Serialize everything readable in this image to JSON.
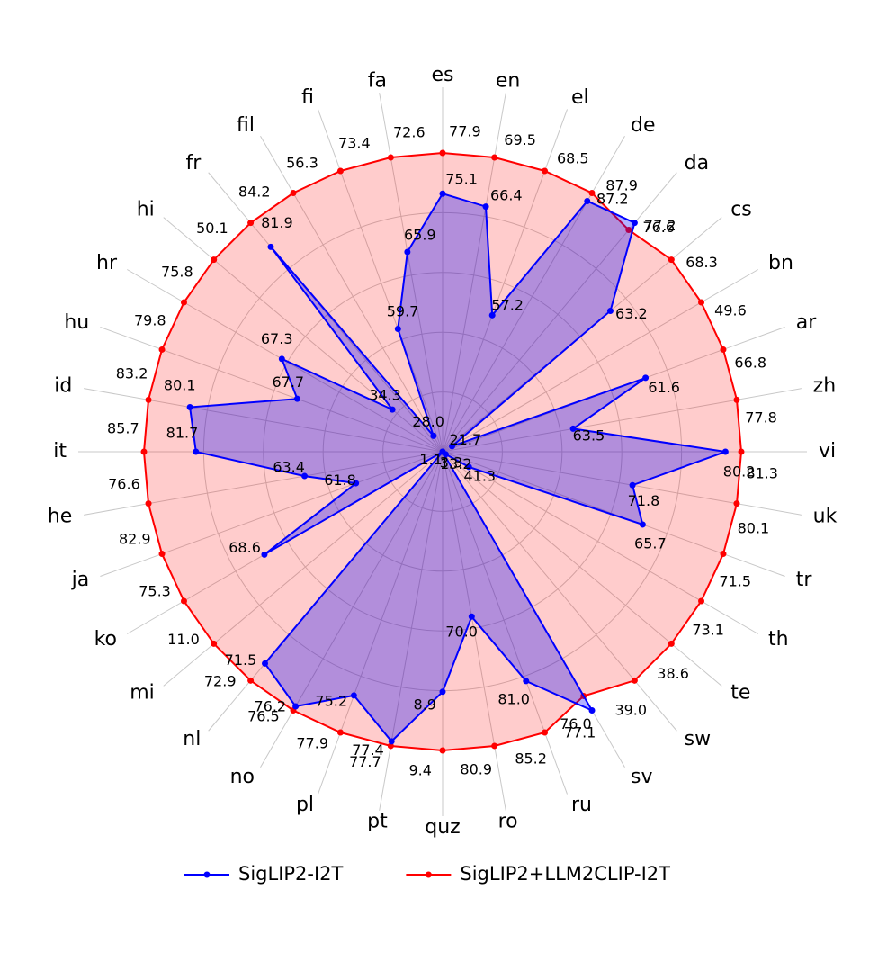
{
  "chart_data": {
    "type": "radar",
    "categories": [
      "es",
      "en",
      "el",
      "de",
      "da",
      "cs",
      "bn",
      "ar",
      "zh",
      "vi",
      "uk",
      "tr",
      "th",
      "te",
      "sw",
      "sv",
      "ru",
      "ro",
      "quz",
      "pt",
      "pl",
      "no",
      "nl",
      "mi",
      "ko",
      "ja",
      "he",
      "it",
      "id",
      "hu",
      "hr",
      "hi",
      "fr",
      "fil",
      "fi",
      "fa"
    ],
    "series": [
      {
        "name": "SigLIP2-I2T",
        "color": "#0000ff",
        "values": [
          75.1,
          66.4,
          57.2,
          87.2,
          77.2,
          63.2,
          21.7,
          61.6,
          63.5,
          80.2,
          71.8,
          65.7,
          41.3,
          13.2,
          3.3,
          77.1,
          81.0,
          70.0,
          8.9,
          77.4,
          75.2,
          76.2,
          71.5,
          1.1,
          68.6,
          61.8,
          63.4,
          81.7,
          80.1,
          67.7,
          67.3,
          34.3,
          81.9,
          28.0,
          59.7,
          65.9
        ],
        "value_labels": [
          "75.1",
          "66.4",
          "57.2",
          "87.2",
          "77.2",
          "63.2",
          "21.7",
          "61.6",
          "63.5",
          "80.2",
          "71.8",
          "65.7",
          "41.3",
          "13.2",
          "3.3",
          "77.1",
          "81.0",
          "70.0",
          "8.9",
          "77.4",
          "75.2",
          "76.2",
          "71.5",
          "1.1",
          "68.6",
          "61.8",
          "63.4",
          "81.7",
          "80.1",
          "67.7",
          "67.3",
          "34.3",
          "81.9",
          "28.0",
          "59.7",
          "65.9"
        ]
      },
      {
        "name": "SigLIP2+LLM2CLIP-I2T",
        "color": "#ff0000",
        "values": [
          77.9,
          69.5,
          68.5,
          87.9,
          76.6,
          68.3,
          49.6,
          66.8,
          77.8,
          81.3,
          80.1,
          71.5,
          73.1,
          38.6,
          39.0,
          76.0,
          85.2,
          80.9,
          9.4,
          77.7,
          77.9,
          76.5,
          72.9,
          11.0,
          75.3,
          82.9,
          76.6,
          85.7,
          83.2,
          79.8,
          75.8,
          50.1,
          84.2,
          56.3,
          73.4,
          72.6
        ],
        "value_labels": [
          "77.9",
          "69.5",
          "68.5",
          "87.9",
          "76.6",
          "68.3",
          "49.6",
          "66.8",
          "77.8",
          "81.3",
          "80.1",
          "71.5",
          "73.1",
          "38.6",
          "39.0",
          "76.0",
          "85.2",
          "80.9",
          "9.4",
          "77.7",
          "77.9",
          "76.5",
          "72.9",
          "11.0",
          "75.3",
          "82.9",
          "76.6",
          "85.7",
          "83.2",
          "79.8",
          "75.8",
          "50.1",
          "84.2",
          "56.3",
          "73.4",
          "72.6"
        ]
      }
    ],
    "legend": "bottom",
    "grid": true
  }
}
